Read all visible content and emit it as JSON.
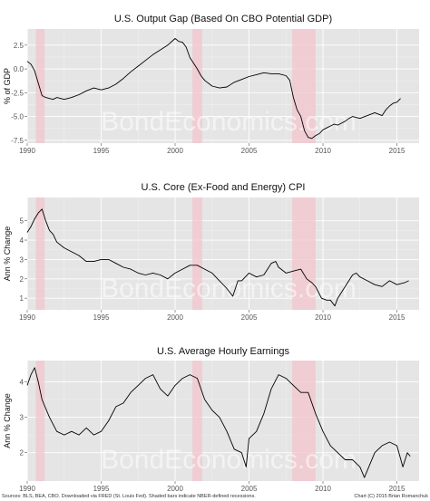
{
  "watermark": "BondEconomics.com",
  "footer": {
    "source": "Sources: BLS, BEA, CBO. Downloaded via FRED (St. Louis Fed). Shaded bars indicate NBER-defined recessions.",
    "credit": "Chart (C) 2015 Brian Romanchuk"
  },
  "colors": {
    "panel_bg": "#e5e5e5",
    "grid": "#ffffff",
    "recession": "#f2c4cc",
    "line": "#000000"
  },
  "chart_data": [
    {
      "type": "line",
      "title": "U.S. Output Gap (Based On CBO Potential GDP)",
      "ylabel": "% of GDP",
      "xlim": [
        1990,
        2016.5
      ],
      "ylim": [
        -7.8,
        4.2
      ],
      "xticks": [
        1990,
        1995,
        2000,
        2005,
        2010,
        2015
      ],
      "yticks": [
        2.5,
        0,
        -2.5,
        -5,
        -7.5
      ],
      "ytick_labels": [
        "2.5",
        "0.0",
        "-2.5",
        "-5.0",
        "-7.5"
      ],
      "grid": true,
      "recessions": [
        [
          1990.58,
          1991.17
        ],
        [
          2001.17,
          2001.83
        ],
        [
          2007.92,
          2009.5
        ]
      ],
      "x": [
        1990.0,
        1990.25,
        1990.5,
        1990.75,
        1991.0,
        1991.25,
        1991.5,
        1991.75,
        1992.0,
        1992.5,
        1993.0,
        1993.5,
        1994.0,
        1994.5,
        1995.0,
        1995.5,
        1996.0,
        1996.5,
        1997.0,
        1997.5,
        1998.0,
        1998.5,
        1999.0,
        1999.5,
        2000.0,
        2000.25,
        2000.5,
        2000.75,
        2001.0,
        2001.25,
        2001.5,
        2001.75,
        2002.0,
        2002.5,
        2003.0,
        2003.5,
        2004.0,
        2004.5,
        2005.0,
        2005.5,
        2006.0,
        2006.5,
        2007.0,
        2007.5,
        2007.75,
        2008.0,
        2008.25,
        2008.5,
        2008.75,
        2009.0,
        2009.25,
        2009.5,
        2009.75,
        2010.0,
        2010.25,
        2010.5,
        2010.75,
        2011.0,
        2011.25,
        2011.5,
        2011.75,
        2012.0,
        2012.5,
        2013.0,
        2013.5,
        2014.0,
        2014.25,
        2014.5,
        2014.75,
        2015.0,
        2015.25
      ],
      "y": [
        0.8,
        0.5,
        -0.2,
        -1.5,
        -2.8,
        -3.0,
        -3.1,
        -3.2,
        -3.0,
        -3.2,
        -3.0,
        -2.7,
        -2.3,
        -2.0,
        -2.2,
        -2.0,
        -1.6,
        -1.0,
        -0.3,
        0.3,
        0.9,
        1.5,
        2.0,
        2.5,
        3.2,
        2.9,
        2.8,
        2.3,
        1.2,
        0.6,
        0.0,
        -0.7,
        -1.2,
        -1.8,
        -2.0,
        -1.9,
        -1.4,
        -1.1,
        -0.8,
        -0.6,
        -0.4,
        -0.5,
        -0.5,
        -0.7,
        -1.2,
        -3.0,
        -4.3,
        -5.0,
        -6.5,
        -7.2,
        -7.3,
        -7.0,
        -6.8,
        -6.4,
        -6.2,
        -6.0,
        -5.8,
        -5.9,
        -5.7,
        -5.5,
        -5.2,
        -5.0,
        -5.2,
        -4.9,
        -4.6,
        -4.9,
        -4.3,
        -3.9,
        -3.6,
        -3.5,
        -3.1
      ]
    },
    {
      "type": "line",
      "title": "U.S. Core (Ex-Food and Energy) CPI",
      "ylabel": "Ann % Change",
      "xlim": [
        1990,
        2016.5
      ],
      "ylim": [
        0.4,
        6.2
      ],
      "xticks": [
        1990,
        1995,
        2000,
        2005,
        2010,
        2015
      ],
      "yticks": [
        5,
        4,
        3,
        2,
        1
      ],
      "ytick_labels": [
        "5",
        "4",
        "3",
        "2",
        "1"
      ],
      "grid": true,
      "recessions": [
        [
          1990.58,
          1991.17
        ],
        [
          2001.17,
          2001.83
        ],
        [
          2007.92,
          2009.5
        ]
      ],
      "x": [
        1990.0,
        1990.25,
        1990.5,
        1990.75,
        1991.0,
        1991.25,
        1991.5,
        1991.75,
        1992.0,
        1992.5,
        1993.0,
        1993.5,
        1994.0,
        1994.5,
        1995.0,
        1995.5,
        1996.0,
        1996.5,
        1997.0,
        1997.5,
        1998.0,
        1998.5,
        1999.0,
        1999.5,
        2000.0,
        2000.5,
        2001.0,
        2001.5,
        2002.0,
        2002.5,
        2003.0,
        2003.5,
        2003.9,
        2004.25,
        2004.5,
        2005.0,
        2005.5,
        2006.0,
        2006.5,
        2006.8,
        2007.0,
        2007.5,
        2008.0,
        2008.5,
        2008.9,
        2009.25,
        2009.5,
        2009.9,
        2010.25,
        2010.5,
        2010.8,
        2011.0,
        2011.5,
        2012.0,
        2012.25,
        2012.5,
        2013.0,
        2013.5,
        2014.0,
        2014.5,
        2015.0,
        2015.5,
        2015.8
      ],
      "y": [
        4.4,
        4.7,
        5.1,
        5.4,
        5.6,
        5.0,
        4.5,
        4.3,
        3.9,
        3.6,
        3.4,
        3.2,
        2.9,
        2.9,
        3.0,
        3.0,
        2.8,
        2.6,
        2.5,
        2.3,
        2.2,
        2.3,
        2.2,
        2.0,
        2.3,
        2.5,
        2.7,
        2.7,
        2.5,
        2.3,
        1.9,
        1.5,
        1.1,
        1.9,
        1.9,
        2.3,
        2.1,
        2.2,
        2.8,
        2.9,
        2.6,
        2.3,
        2.4,
        2.5,
        2.0,
        1.8,
        1.6,
        1.0,
        0.9,
        0.9,
        0.6,
        1.0,
        1.6,
        2.2,
        2.3,
        2.1,
        1.9,
        1.7,
        1.6,
        1.9,
        1.7,
        1.8,
        1.9
      ]
    },
    {
      "type": "line",
      "title": "U.S. Average Hourly Earnings",
      "ylabel": "Ann % Change",
      "xlim": [
        1990,
        2016.5
      ],
      "ylim": [
        1.2,
        4.6
      ],
      "xticks": [
        1990,
        1995,
        2000,
        2005,
        2010,
        2015
      ],
      "yticks": [
        4,
        3,
        2
      ],
      "ytick_labels": [
        "4",
        "3",
        "2"
      ],
      "grid": true,
      "recessions": [
        [
          1990.58,
          1991.17
        ],
        [
          2001.17,
          2001.83
        ],
        [
          2007.92,
          2009.5
        ]
      ],
      "x": [
        1990.0,
        1990.25,
        1990.5,
        1990.75,
        1991.0,
        1991.5,
        1992.0,
        1992.5,
        1993.0,
        1993.5,
        1994.0,
        1994.5,
        1995.0,
        1995.5,
        1996.0,
        1996.5,
        1997.0,
        1997.5,
        1998.0,
        1998.5,
        1999.0,
        1999.5,
        2000.0,
        2000.5,
        2001.0,
        2001.5,
        2002.0,
        2002.5,
        2003.0,
        2003.5,
        2004.0,
        2004.5,
        2004.8,
        2005.0,
        2005.5,
        2006.0,
        2006.5,
        2007.0,
        2007.5,
        2008.0,
        2008.5,
        2009.0,
        2009.5,
        2010.0,
        2010.5,
        2011.0,
        2011.5,
        2012.0,
        2012.5,
        2012.8,
        2013.0,
        2013.5,
        2014.0,
        2014.5,
        2015.0,
        2015.4,
        2015.7,
        2015.9
      ],
      "y": [
        3.9,
        4.2,
        4.4,
        4.0,
        3.5,
        3.0,
        2.6,
        2.5,
        2.6,
        2.5,
        2.7,
        2.5,
        2.6,
        2.9,
        3.3,
        3.4,
        3.7,
        3.9,
        4.1,
        4.2,
        3.8,
        3.6,
        3.9,
        4.1,
        4.2,
        4.1,
        3.5,
        3.2,
        3.0,
        2.6,
        2.1,
        2.0,
        1.6,
        2.4,
        2.6,
        3.1,
        3.8,
        4.2,
        4.1,
        3.9,
        3.7,
        3.7,
        3.1,
        2.6,
        2.2,
        2.0,
        1.8,
        1.8,
        1.6,
        1.3,
        1.5,
        2.0,
        2.2,
        2.3,
        2.2,
        1.6,
        2.0,
        1.9
      ]
    }
  ]
}
